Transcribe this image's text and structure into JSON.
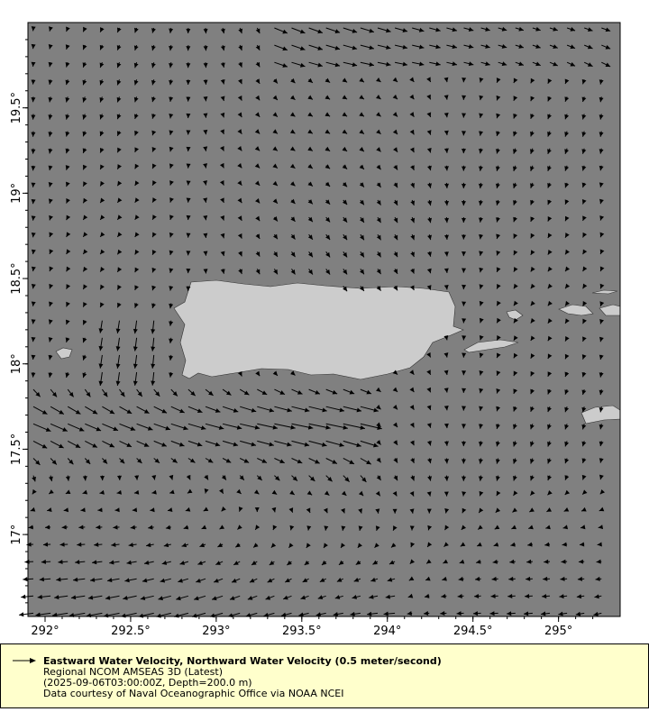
{
  "map": {
    "x_ticks": [
      "292°",
      "292.5°",
      "293°",
      "293.5°",
      "294°",
      "294.5°",
      "295°"
    ],
    "y_ticks": [
      "19.5°",
      "19°",
      "18.5°",
      "18°",
      "17.5°",
      "17°"
    ],
    "lon_range": [
      291.9,
      295.36
    ],
    "lat_range": [
      16.52,
      20.0
    ],
    "ocean_color": "#808080",
    "land_color": "#cccccc",
    "vector_color": "#000000"
  },
  "legend": {
    "title": "Eastward Water Velocity, Northward Water Velocity (0.5 meter/second)",
    "line2": "Regional NCOM AMSEAS 3D (Latest)",
    "line3": "(2025-09-06T03:00:00Z, Depth=200.0 m)",
    "line4": "Data courtesy of Naval Oceanographic Office via NOAA NCEI",
    "background": "#ffffcc"
  }
}
